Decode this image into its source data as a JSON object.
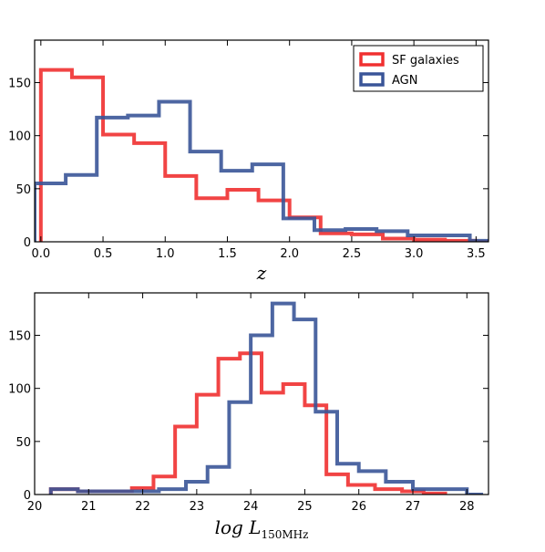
{
  "colors": {
    "sf": "#f03030",
    "agn": "#3a5598"
  },
  "chart_data": [
    {
      "type": "histogram",
      "xlabel": "z",
      "ylabel": "",
      "xlim": [
        -0.05,
        3.6
      ],
      "ylim": [
        0,
        190
      ],
      "xticks": [
        "0.0",
        "0.5",
        "1.0",
        "1.5",
        "2.0",
        "2.5",
        "3.0",
        "3.5"
      ],
      "xtick_values": [
        0,
        0.5,
        1.0,
        1.5,
        2.0,
        2.5,
        3.0,
        3.5
      ],
      "yticks": [
        "0",
        "50",
        "100",
        "150"
      ],
      "ytick_values": [
        0,
        50,
        100,
        150
      ],
      "legend": {
        "position": "top-right",
        "entries": [
          "SF galaxies",
          "AGN"
        ]
      },
      "series": [
        {
          "name": "SF galaxies",
          "color": "#f03030",
          "bin_edges": [
            0.0,
            0.25,
            0.5,
            0.75,
            1.0,
            1.25,
            1.5,
            1.75,
            2.0,
            2.25,
            2.5,
            2.75,
            3.0,
            3.25,
            3.5,
            3.6
          ],
          "counts": [
            162,
            155,
            101,
            93,
            62,
            41,
            49,
            39,
            23,
            8,
            7,
            3,
            2,
            1,
            0
          ]
        },
        {
          "name": "AGN",
          "color": "#3a5598",
          "bin_edges": [
            -0.05,
            0.2,
            0.45,
            0.7,
            0.95,
            1.2,
            1.45,
            1.7,
            1.95,
            2.2,
            2.45,
            2.7,
            2.95,
            3.2,
            3.45,
            3.6
          ],
          "counts": [
            55,
            63,
            117,
            119,
            132,
            85,
            67,
            73,
            22,
            11,
            12,
            10,
            6,
            6,
            1
          ]
        }
      ]
    },
    {
      "type": "histogram",
      "xlabel": "log L",
      "xlabel_sub": "150MHz",
      "ylabel": "",
      "xlim": [
        20,
        28.4
      ],
      "ylim": [
        0,
        190
      ],
      "xticks": [
        "20",
        "21",
        "22",
        "23",
        "24",
        "25",
        "26",
        "27",
        "28"
      ],
      "xtick_values": [
        20,
        21,
        22,
        23,
        24,
        25,
        26,
        27,
        28
      ],
      "yticks": [
        "0",
        "50",
        "100",
        "150"
      ],
      "ytick_values": [
        0,
        50,
        100,
        150
      ],
      "series": [
        {
          "name": "SF galaxies",
          "color": "#f03030",
          "bin_edges": [
            20.3,
            20.8,
            21.3,
            21.8,
            22.2,
            22.6,
            23.0,
            23.4,
            23.8,
            24.2,
            24.6,
            25.0,
            25.4,
            25.8,
            26.3,
            26.8,
            27.2,
            27.6
          ],
          "counts": [
            5,
            3,
            3,
            6,
            17,
            64,
            94,
            128,
            133,
            96,
            104,
            84,
            19,
            9,
            5,
            3,
            1
          ]
        },
        {
          "name": "AGN",
          "color": "#3a5598",
          "bin_edges": [
            20.3,
            20.8,
            21.3,
            21.8,
            22.3,
            22.8,
            23.2,
            23.6,
            24.0,
            24.4,
            24.8,
            25.2,
            25.6,
            26.0,
            26.5,
            27.0,
            27.5,
            28.0,
            28.3
          ],
          "counts": [
            5,
            3,
            3,
            3,
            5,
            12,
            26,
            87,
            150,
            180,
            165,
            78,
            29,
            22,
            12,
            5,
            5,
            0
          ]
        }
      ]
    }
  ]
}
